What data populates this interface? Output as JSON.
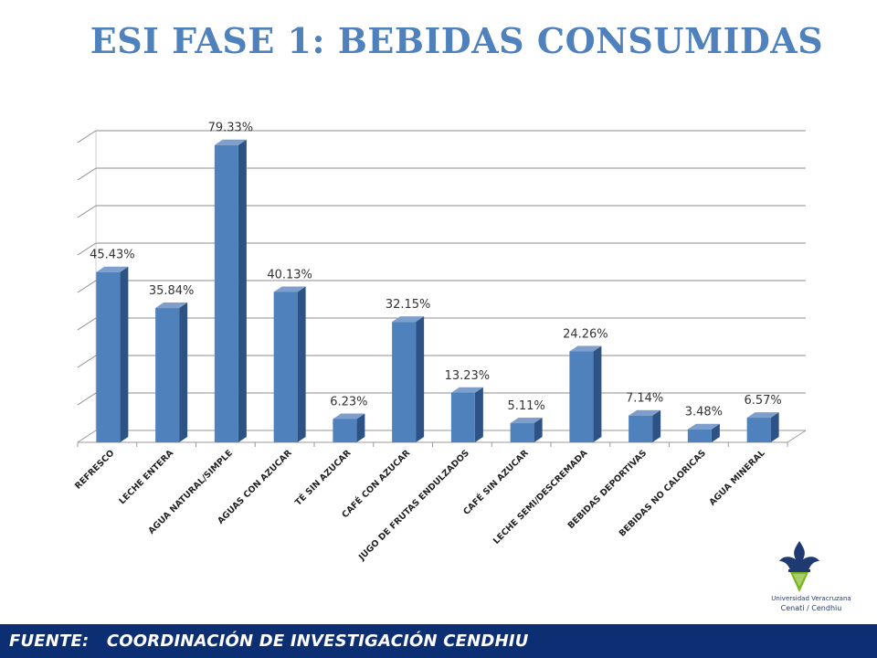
{
  "title": "ESI FASE 1: BEBIDAS  CONSUMIDAS",
  "footer": "FUENTE:   COORDINACIÓN DE INVESTIGACIÓN CENDHIU",
  "logo": {
    "line1": "Universidad Veracruzana",
    "line2": "Cenati / Cendhiu",
    "colors": {
      "navy": "#1f3a73",
      "green": "#7ab51d"
    }
  },
  "colors": {
    "title": "#4F81BD",
    "bar_front": "#4F81BD",
    "bar_side": "#2D5386",
    "bar_top": "#7E9FCB",
    "footer_bg": "#0b2f72"
  },
  "chart_data": {
    "type": "bar",
    "style": "3d-column",
    "categories": [
      "REFRESCO",
      "LECHE ENTERA",
      "AGUA NATURAL/SIMPLE",
      "AGUAS CON AZUCAR",
      "TÉ SIN AZUCAR",
      "CAFÉ CON AZUCAR",
      "JUGO DE FRUTAS ENDULZADOS",
      "CAFÉ  SIN AZUCAR",
      "LECHE SEMI/DESCREMADA",
      "BEBIDAS DEPORTIVAS",
      "BEBIDAS NO CALORICAS",
      "AGUA MINERAL"
    ],
    "values": [
      45.43,
      35.84,
      79.33,
      40.13,
      6.23,
      32.15,
      13.23,
      5.11,
      24.26,
      7.14,
      3.48,
      6.57
    ],
    "data_labels": [
      "45.43%",
      "35.84%",
      "79.33%",
      "40.13%",
      "6.23%",
      "32.15%",
      "13.23%",
      "5.11%",
      "24.26%",
      "7.14%",
      "3.48%",
      "6.57%"
    ],
    "ylim": [
      0,
      80
    ],
    "y_ticks_shown": false,
    "grid": true,
    "legend": "none"
  }
}
